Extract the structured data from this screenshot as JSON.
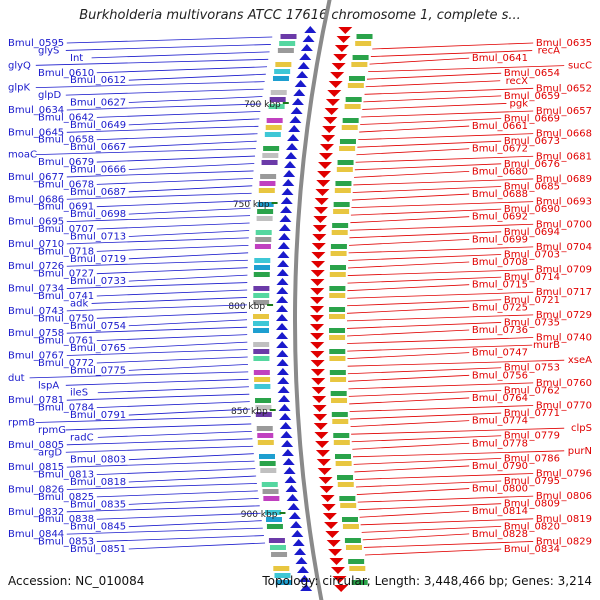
{
  "title": "Burkholderia multivorans ATCC 17616 chromosome 1, complete s...",
  "footer": {
    "accession": "Accession: NC_010084",
    "topology": "Topology: circular; Length: 3,448,466 bp; Genes: 3,214"
  },
  "colors": {
    "minus_strand": "#1a1acc",
    "plus_strand": "#e00000",
    "backbone": "#8a8a8a",
    "kbp_tick": "#1a7a1a"
  },
  "kbp_ticks": [
    "700 kbp",
    "750 kbp",
    "800 kbp",
    "850 kbp",
    "900 kbp"
  ],
  "minus_strand_labels": [
    "Bmul_0595",
    "glyS",
    "Int",
    "glyQ",
    "Bmul_0610",
    "Bmul_0612",
    "glpK",
    "glpD",
    "Bmul_0627",
    "Bmul_0634",
    "Bmul_0642",
    "Bmul_0649",
    "Bmul_0645",
    "Bmul_0658",
    "Bmul_0667",
    "moaC",
    "Bmul_0679",
    "Bmul_0666",
    "Bmul_0677",
    "Bmul_0678",
    "Bmul_0687",
    "Bmul_0686",
    "Bmul_0691",
    "Bmul_0698",
    "Bmul_0695",
    "Bmul_0707",
    "Bmul_0713",
    "Bmul_0710",
    "Bmul_0718",
    "Bmul_0719",
    "Bmul_0726",
    "Bmul_0727",
    "Bmul_0733",
    "Bmul_0734",
    "Bmul_0741",
    "adk",
    "Bmul_0743",
    "Bmul_0750",
    "Bmul_0754",
    "Bmul_0758",
    "Bmul_0761",
    "Bmul_0765",
    "Bmul_0767",
    "Bmul_0772",
    "Bmul_0775",
    "dut",
    "lspA",
    "ileS",
    "Bmul_0781",
    "Bmul_0784",
    "Bmul_0791",
    "rpmB",
    "rpmG",
    "radC",
    "Bmul_0805",
    "argD",
    "Bmul_0803",
    "Bmul_0815",
    "Bmul_0813",
    "Bmul_0818",
    "Bmul_0826",
    "Bmul_0825",
    "Bmul_0835",
    "Bmul_0832",
    "Bmul_0838",
    "Bmul_0845",
    "Bmul_0844",
    "Bmul_0853",
    "Bmul_0851"
  ],
  "plus_strand_labels": [
    "Bmul_0635",
    "recA",
    "Bmul_0641",
    "sucC",
    "Bmul_0654",
    "recX",
    "Bmul_0652",
    "Bmul_0659",
    "pgk",
    "Bmul_0657",
    "Bmul_0669",
    "Bmul_0661",
    "Bmul_0668",
    "Bmul_0673",
    "Bmul_0672",
    "Bmul_0681",
    "Bmul_0676",
    "Bmul_0680",
    "Bmul_0689",
    "Bmul_0685",
    "Bmul_0688",
    "Bmul_0693",
    "Bmul_0690",
    "Bmul_0692",
    "Bmul_0700",
    "Bmul_0694",
    "Bmul_0699",
    "Bmul_0704",
    "Bmul_0703",
    "Bmul_0708",
    "Bmul_0709",
    "Bmul_0714",
    "Bmul_0715",
    "Bmul_0717",
    "Bmul_0721",
    "Bmul_0725",
    "Bmul_0729",
    "Bmul_0735",
    "Bmul_0736",
    "Bmul_0740",
    "murB",
    "Bmul_0747",
    "xseA",
    "Bmul_0753",
    "Bmul_0756",
    "Bmul_0760",
    "Bmul_0762",
    "Bmul_0764",
    "Bmul_0770",
    "Bmul_0771",
    "Bmul_0774",
    "clpS",
    "Bmul_0779",
    "Bmul_0778",
    "purN",
    "Bmul_0786",
    "Bmul_0790",
    "Bmul_0796",
    "Bmul_0795",
    "Bmul_0800",
    "Bmul_0806",
    "Bmul_0809",
    "Bmul_0814",
    "Bmul_0819",
    "Bmul_0820",
    "Bmul_0828",
    "Bmul_0829",
    "Bmul_0834"
  ]
}
